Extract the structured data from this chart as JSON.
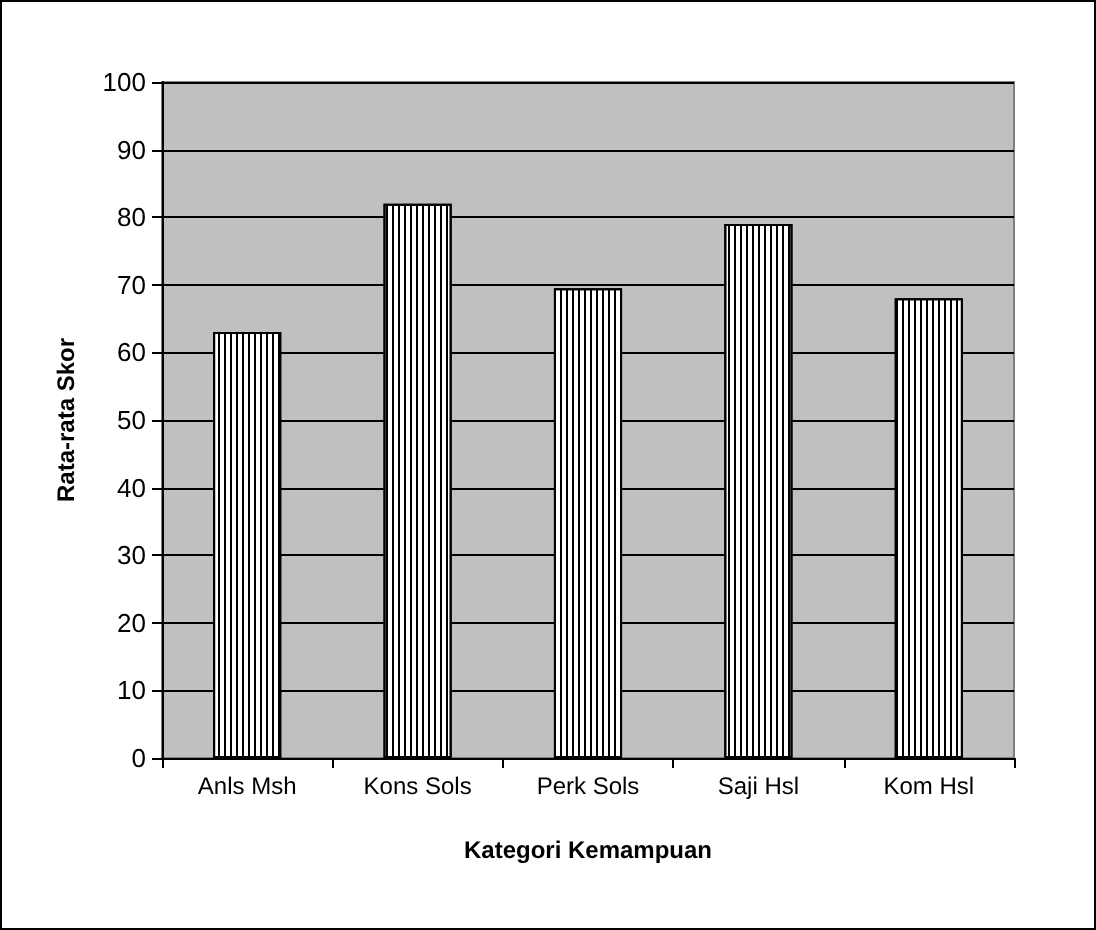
{
  "chart_data": {
    "type": "bar",
    "xlabel": "Kategori Kemampuan",
    "ylabel": "Rata-rata Skor",
    "categories": [
      "Anls Msh",
      "Kons Sols",
      "Perk Sols",
      "Saji Hsl",
      "Kom Hsl"
    ],
    "values": [
      63,
      82,
      69.5,
      79,
      68
    ],
    "color": "#ffffff",
    "ylim": [
      0,
      100
    ],
    "yticks": [
      0,
      10,
      20,
      30,
      40,
      50,
      60,
      70,
      80,
      90,
      100
    ],
    "grid": "y"
  }
}
